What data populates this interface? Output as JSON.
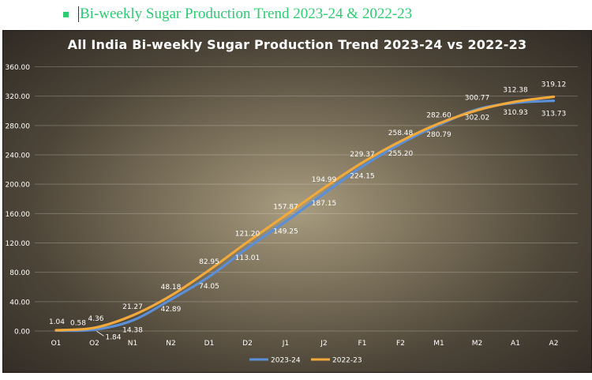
{
  "heading": {
    "text": "Bi-weekly Sugar Production Trend 2023-24 & 2022-23"
  },
  "chart_data": {
    "type": "line",
    "title": "All India Bi-weekly Sugar Production Trend 2023-24 vs 2022-23",
    "categories": [
      "O1",
      "O2",
      "N1",
      "N2",
      "D1",
      "D2",
      "J1",
      "J2",
      "F1",
      "F2",
      "M1",
      "M2",
      "A1",
      "A2"
    ],
    "ylim": [
      0,
      360
    ],
    "yticks": [
      "0.00",
      "40.00",
      "80.00",
      "120.00",
      "160.00",
      "200.00",
      "240.00",
      "280.00",
      "320.00",
      "360.00"
    ],
    "grid": true,
    "legend_position": "bottom",
    "series": [
      {
        "name": "2023-24",
        "color": "#5b8fd6",
        "values": [
          0.58,
          1.84,
          14.38,
          42.89,
          74.05,
          113.01,
          149.25,
          187.15,
          224.15,
          255.2,
          280.79,
          302.02,
          310.93,
          313.73
        ],
        "labels": [
          "0.58",
          "1.84",
          "14.38",
          "42.89",
          "74.05",
          "113.01",
          "149.25",
          "187.15",
          "224.15",
          "255.20",
          "280.79",
          "302.02",
          "310.93",
          "313.73"
        ]
      },
      {
        "name": "2022-23",
        "color": "#f2a93b",
        "values": [
          1.04,
          4.36,
          21.27,
          48.18,
          82.95,
          121.2,
          157.87,
          194.99,
          229.37,
          258.48,
          282.6,
          300.77,
          312.38,
          319.12
        ],
        "labels": [
          "1.04",
          "4.36",
          "21.27",
          "48.18",
          "82.95",
          "121.20",
          "157.87",
          "194.99",
          "229.37",
          "258.48",
          "282.60",
          "300.77",
          "312.38",
          "319.12"
        ]
      }
    ]
  }
}
